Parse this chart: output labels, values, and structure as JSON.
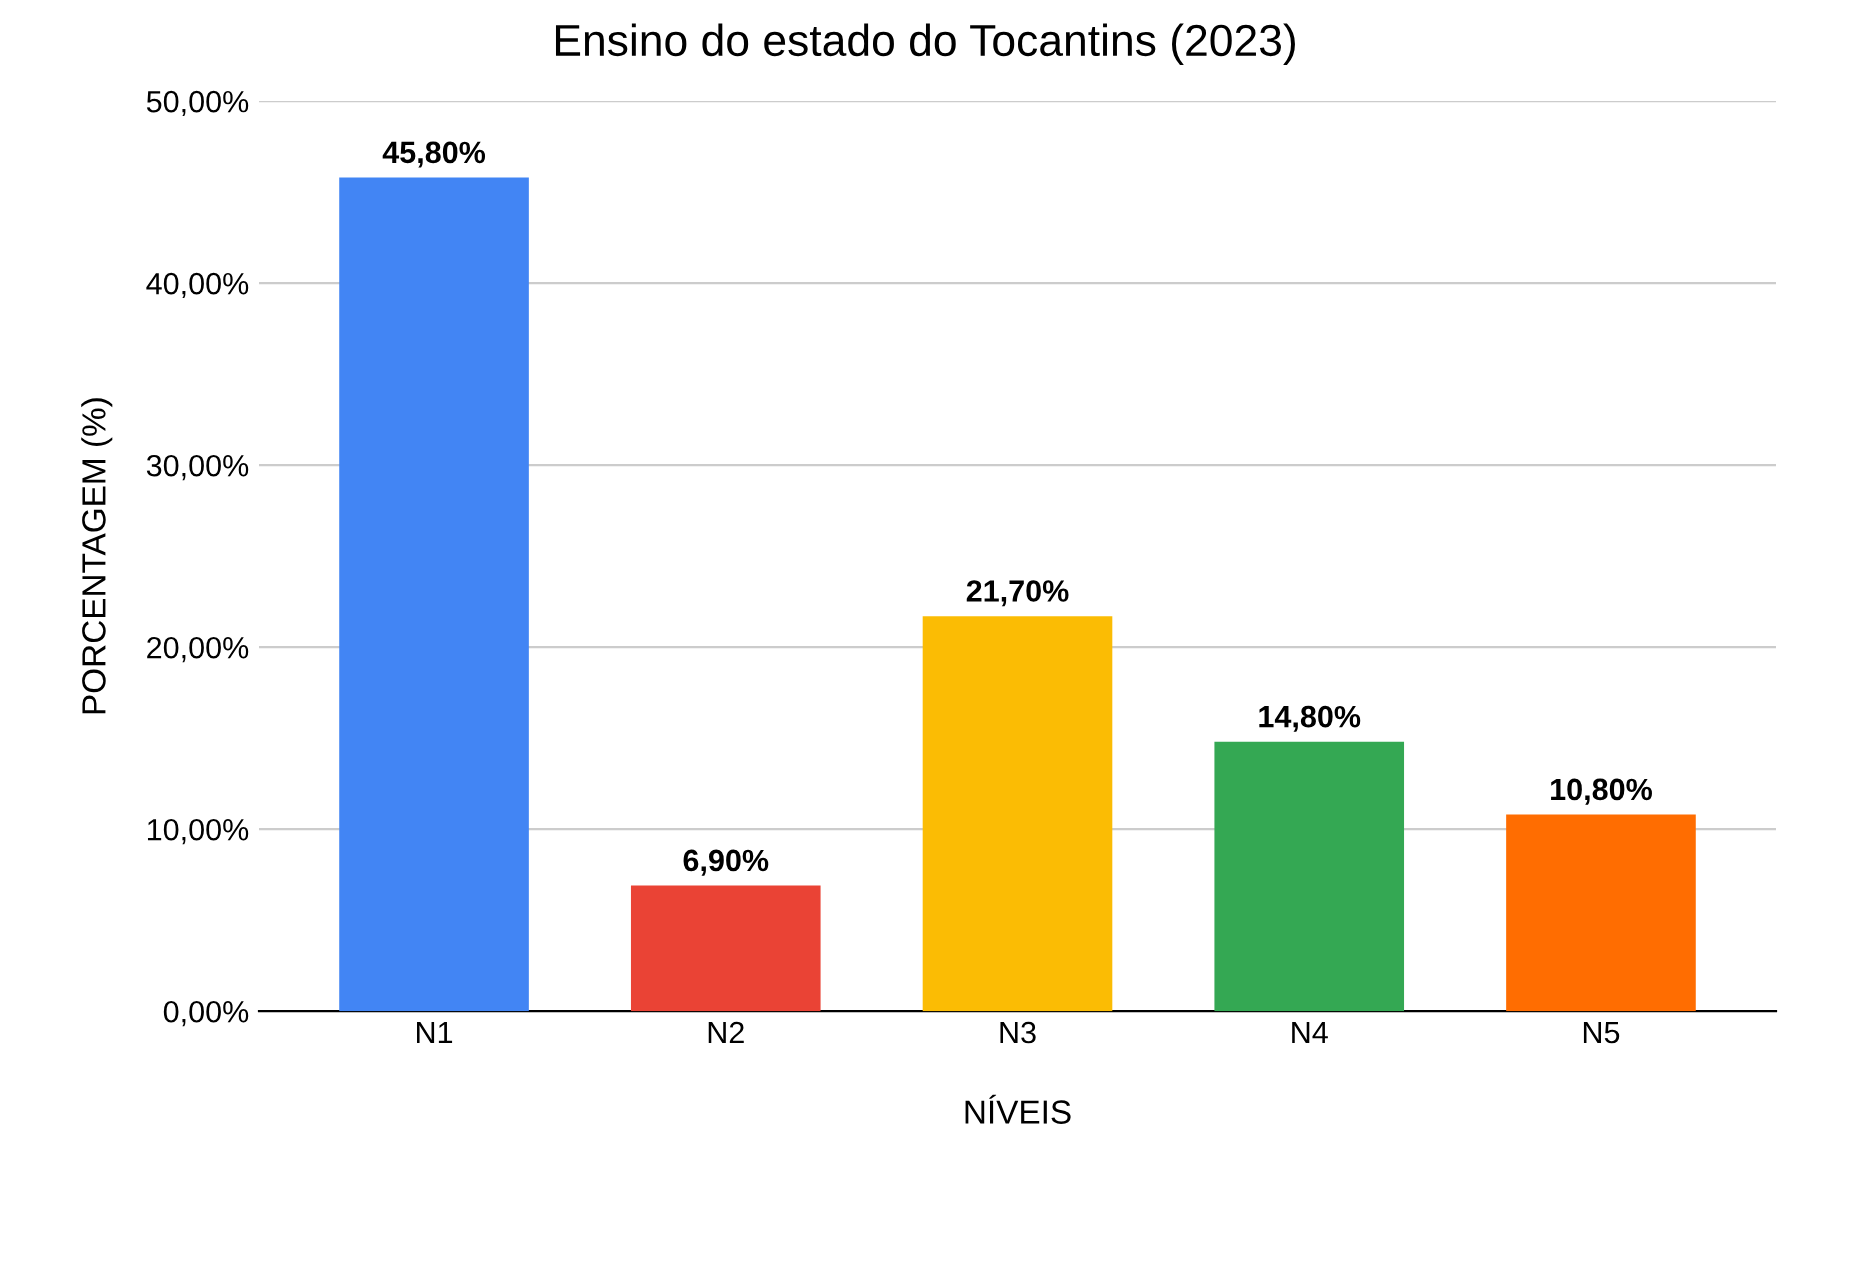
{
  "chart_data": {
    "type": "bar",
    "title": "Ensino do estado do Tocantins (2023)",
    "xlabel": "NÍVEIS",
    "ylabel": "PORCENTAGEM (%)",
    "categories": [
      "N1",
      "N2",
      "N3",
      "N4",
      "N5"
    ],
    "values": [
      45.8,
      6.9,
      21.7,
      14.8,
      10.8
    ],
    "colors": [
      "#4285f4",
      "#ea4335",
      "#fbbc04",
      "#34a853",
      "#ff6d01"
    ],
    "value_labels": [
      "45,80%",
      "6,90%",
      "21,70%",
      "14,80%",
      "10,80%"
    ],
    "ylim": [
      0,
      50
    ],
    "yticks": [
      {
        "value": 0,
        "label": "0,00%"
      },
      {
        "value": 10,
        "label": "10,00%"
      },
      {
        "value": 20,
        "label": "20,00%"
      },
      {
        "value": 30,
        "label": "30,00%"
      },
      {
        "value": 40,
        "label": "40,00%"
      },
      {
        "value": 50,
        "label": "50,00%"
      }
    ],
    "grid": "y",
    "legend": false
  }
}
